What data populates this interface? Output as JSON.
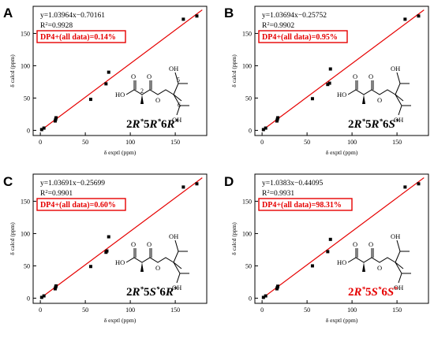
{
  "chart_data": [
    {
      "panel": "A",
      "type": "scatter",
      "xlabel": "δ exptl (ppm)",
      "ylabel": "δ calcd (ppm)",
      "xticks": [
        0,
        50,
        100,
        150
      ],
      "yticks": [
        0,
        50,
        100,
        150
      ],
      "xlim": [
        -8,
        185
      ],
      "ylim": [
        -8,
        192
      ],
      "equation": "y=1.03964x−0.70161",
      "r2_value": "0.9928",
      "dp4": "DP4+(all data)=0.14%",
      "fit": {
        "slope": 1.03964,
        "intercept": -0.70161
      },
      "points": [
        [
          1.5,
          1.2
        ],
        [
          4,
          3.5
        ],
        [
          16.5,
          14.5
        ],
        [
          17,
          17
        ],
        [
          17.5,
          19.5
        ],
        [
          56,
          48
        ],
        [
          73,
          72
        ],
        [
          76,
          90
        ],
        [
          159,
          172
        ],
        [
          174,
          177
        ]
      ],
      "structure_label": "2R*5R*6R*",
      "config_color": "#000000",
      "atom_numbers": [
        "2",
        "5",
        "6"
      ]
    },
    {
      "panel": "B",
      "type": "scatter",
      "xlabel": "δ exptl (ppm)",
      "ylabel": "δ calcd (ppm)",
      "xticks": [
        0,
        50,
        100,
        150
      ],
      "yticks": [
        0,
        50,
        100,
        150
      ],
      "xlim": [
        -8,
        185
      ],
      "ylim": [
        -8,
        192
      ],
      "equation": "y=1.03694x−0.25752",
      "r2_value": "0.9902",
      "dp4": "DP4+(all data)=0.95%",
      "fit": {
        "slope": 1.03694,
        "intercept": -0.25752
      },
      "points": [
        [
          1.5,
          1.2
        ],
        [
          4,
          3.5
        ],
        [
          16.5,
          14.5
        ],
        [
          17,
          17
        ],
        [
          17.5,
          19.5
        ],
        [
          56,
          49
        ],
        [
          73,
          71
        ],
        [
          75,
          73
        ],
        [
          76,
          95
        ],
        [
          159,
          172
        ],
        [
          174,
          177
        ]
      ],
      "structure_label": "2R*5R*6S*",
      "config_color": "#000000"
    },
    {
      "panel": "C",
      "type": "scatter",
      "xlabel": "δ exptl (ppm)",
      "ylabel": "δ calcd (ppm)",
      "xticks": [
        0,
        50,
        100,
        150
      ],
      "yticks": [
        0,
        50,
        100,
        150
      ],
      "xlim": [
        -8,
        185
      ],
      "ylim": [
        -8,
        192
      ],
      "equation": "y=1.03691x−0.25699",
      "r2_value": "0.9901",
      "dp4": "DP4+(all data)=0.60%",
      "fit": {
        "slope": 1.03691,
        "intercept": -0.25699
      },
      "points": [
        [
          1.5,
          1.2
        ],
        [
          4,
          3.5
        ],
        [
          16.5,
          14.5
        ],
        [
          17,
          17
        ],
        [
          17.5,
          19
        ],
        [
          56,
          49
        ],
        [
          73,
          71
        ],
        [
          74,
          73
        ],
        [
          76,
          95
        ],
        [
          159,
          172
        ],
        [
          174,
          177
        ]
      ],
      "structure_label": "2R*5S*6R*",
      "config_color": "#000000"
    },
    {
      "panel": "D",
      "type": "scatter",
      "xlabel": "δ exptl (ppm)",
      "ylabel": "δ calcd (ppm)",
      "xticks": [
        0,
        50,
        100,
        150
      ],
      "yticks": [
        0,
        50,
        100,
        150
      ],
      "xlim": [
        -8,
        185
      ],
      "ylim": [
        -8,
        192
      ],
      "equation": "y=1.0383x−0.44095",
      "r2_value": "0.9931",
      "dp4": "DP4+(all data)=98.31%",
      "fit": {
        "slope": 1.0383,
        "intercept": -0.44095
      },
      "points": [
        [
          1.5,
          1.2
        ],
        [
          4,
          3.5
        ],
        [
          16.5,
          14.5
        ],
        [
          17,
          16.5
        ],
        [
          17.5,
          18.5
        ],
        [
          56,
          50
        ],
        [
          73,
          72
        ],
        [
          76,
          91
        ],
        [
          159,
          172
        ],
        [
          174,
          177
        ]
      ],
      "structure_label": "2R*5S*6S*",
      "config_color": "#e60000"
    }
  ],
  "colors": {
    "fit_line": "#e60000",
    "points": "#000000",
    "dp4_text": "#e60000",
    "axes": "#000000"
  },
  "structure_atoms": {
    "oh": "OH",
    "ho": "HO",
    "o": "O"
  }
}
